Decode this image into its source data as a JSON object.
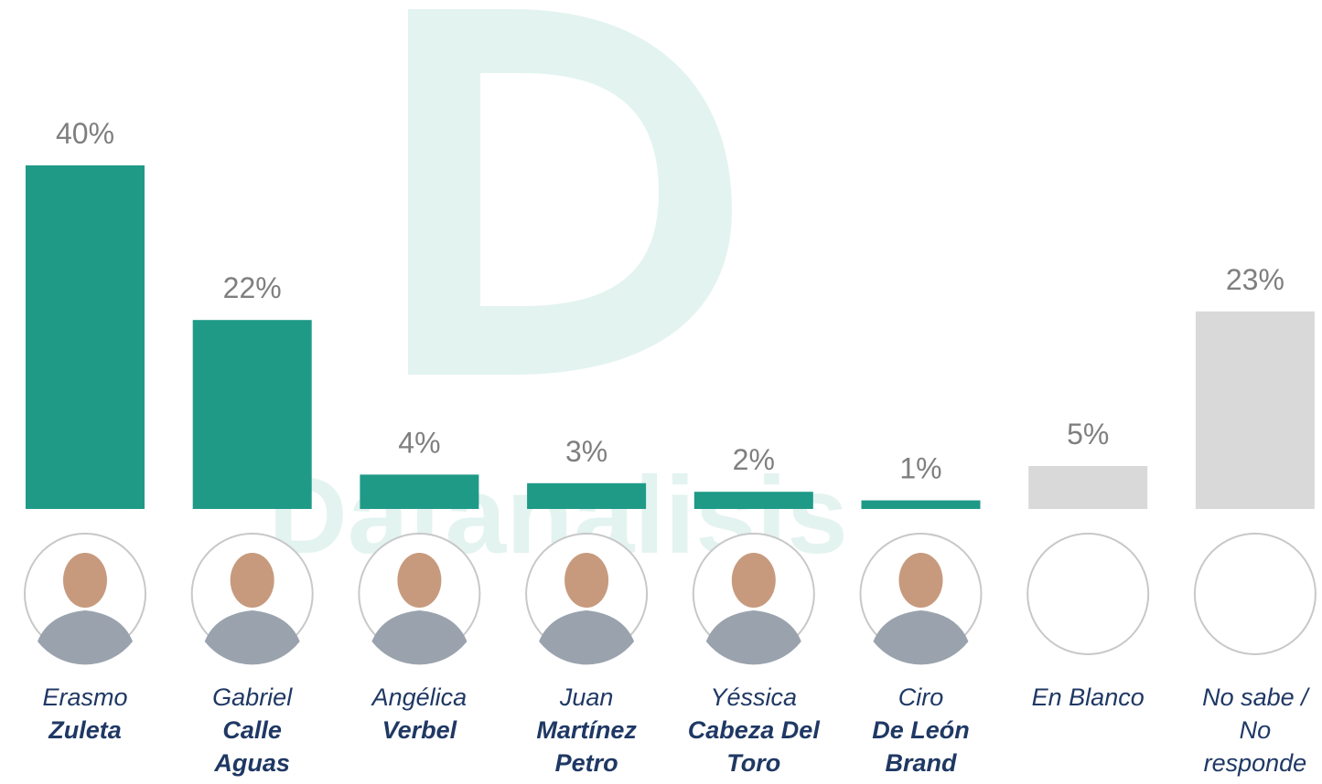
{
  "chart_data": {
    "type": "bar",
    "watermark": "Datanalisis",
    "categories": [
      {
        "given": "Erasmo",
        "surname": "Zuleta"
      },
      {
        "given": "Gabriel",
        "surname": "Calle Aguas"
      },
      {
        "given": "Angélica",
        "surname": "Verbel"
      },
      {
        "given": "Juan",
        "surname": "Martínez Petro"
      },
      {
        "given": "Yéssica",
        "surname": "Cabeza Del Toro"
      },
      {
        "given": "Ciro",
        "surname": "De León Brand"
      },
      {
        "given": "En Blanco"
      },
      {
        "given": "No sabe / No responde"
      }
    ],
    "values": [
      40,
      22,
      4,
      3,
      2,
      1,
      5,
      23
    ],
    "value_labels": [
      "40%",
      "22%",
      "4%",
      "3%",
      "2%",
      "1%",
      "5%",
      "23%"
    ],
    "colors": [
      "#1f9a87",
      "#1f9a87",
      "#1f9a87",
      "#1f9a87",
      "#1f9a87",
      "#1f9a87",
      "#d9d9d9",
      "#d9d9d9"
    ]
  }
}
